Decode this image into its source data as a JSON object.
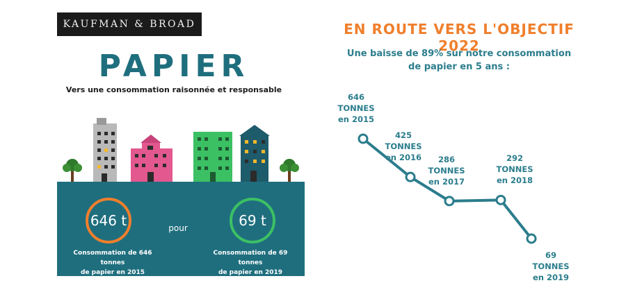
{
  "logo": {
    "text": "KAUFMAN & BROAD"
  },
  "left": {
    "title": "PAPIER",
    "subtitle": "Vers une consommation raisonnée et responsable",
    "badge_2015": "646 t",
    "badge_2019": "69 t",
    "connector": "pour",
    "caption_2015_line1": "Consommation de 646 tonnes",
    "caption_2015_line2": "de papier en 2015",
    "caption_2019_line1": "Consommation de 69 tonnes",
    "caption_2019_line2": "de papier en 2019"
  },
  "right": {
    "title": "EN ROUTE VERS L'OBJECTIF 2022",
    "subtitle_line1": "Une baisse de 89% sur notre consommation",
    "subtitle_line2": "de papier en 5 ans :"
  },
  "colors": {
    "teal": "#1f6e7e",
    "orange": "#f07f2c",
    "green": "#3cc064",
    "line": "#2b7d8c"
  },
  "chart_data": {
    "type": "line",
    "title": "EN ROUTE VERS L'OBJECTIF 2022",
    "x": [
      "2015",
      "2016",
      "2017",
      "2018",
      "2019"
    ],
    "series": [
      {
        "values": [
          646,
          425,
          286,
          292,
          69
        ]
      }
    ],
    "point_labels": [
      {
        "value": "646",
        "unit": "TONNES",
        "year": "en 2015"
      },
      {
        "value": "425",
        "unit": "TONNES",
        "year": "en 2016"
      },
      {
        "value": "286",
        "unit": "TONNES",
        "year": "en 2017"
      },
      {
        "value": "292",
        "unit": "TONNES",
        "year": "en 2018"
      },
      {
        "value": "69",
        "unit": "TONNES",
        "year": "en 2019"
      }
    ],
    "grid": false,
    "axes_visible": false
  }
}
